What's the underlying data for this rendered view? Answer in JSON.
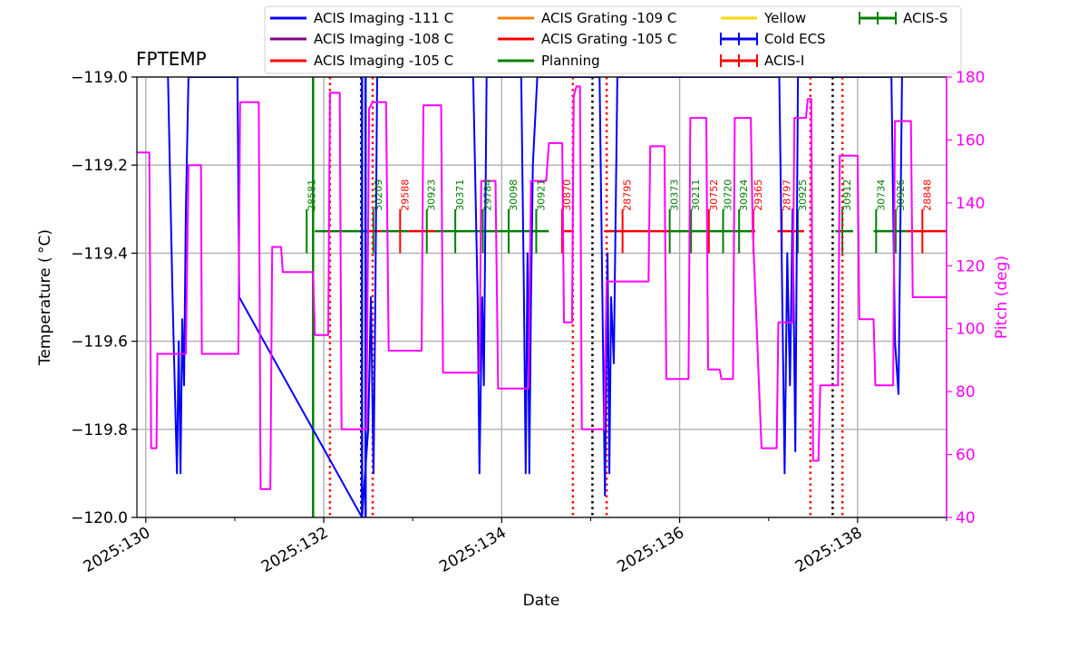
{
  "chart_data": {
    "type": "line",
    "title": "FPTEMP",
    "xlabel": "Date",
    "ylabel": "Temperature ($^\\circ$C)",
    "ylabel_display": "Temperature ( °C)",
    "y2label": "Pitch (deg)",
    "xlim": [
      129.9,
      139.0
    ],
    "ylim": [
      -120.0,
      -119.0
    ],
    "y2lim": [
      40,
      180
    ],
    "x_ticks": [
      130,
      132,
      134,
      136,
      138
    ],
    "x_tick_labels": [
      "2025:130",
      "2025:132",
      "2025:134",
      "2025:136",
      "2025:138"
    ],
    "y_ticks": [
      -120.0,
      -119.8,
      -119.6,
      -119.4,
      -119.2,
      -119.0
    ],
    "y_tick_labels": [
      "−120.0",
      "−119.8",
      "−119.6",
      "−119.4",
      "−119.2",
      "−119.0"
    ],
    "y2_ticks": [
      40,
      60,
      80,
      100,
      120,
      140,
      160,
      180
    ],
    "y2_tick_labels": [
      "40",
      "60",
      "80",
      "100",
      "120",
      "140",
      "160",
      "180"
    ],
    "grid": true,
    "legend_placement": "top, above plot",
    "colors": {
      "temperature": "#0000ff",
      "pitch": "#ff00ff",
      "planning": "#008000",
      "red_limit": "#ff0000",
      "grid": "#b0b0b0"
    },
    "legend": [
      {
        "label": "ACIS Imaging -111 C",
        "color": "#0000ff",
        "style": "line"
      },
      {
        "label": "ACIS Imaging -108 C",
        "color": "#800080",
        "style": "line"
      },
      {
        "label": "ACIS Imaging -105 C",
        "color": "#ff0000",
        "style": "line"
      },
      {
        "label": "ACIS Grating -109 C",
        "color": "#ff8000",
        "style": "line"
      },
      {
        "label": "ACIS Grating -105 C",
        "color": "#ff0000",
        "style": "line"
      },
      {
        "label": "Planning",
        "color": "#008000",
        "style": "line"
      },
      {
        "label": "Yellow",
        "color": "#ffd700",
        "style": "line"
      },
      {
        "label": "Cold ECS",
        "color": "#0000ff",
        "style": "errorbar"
      },
      {
        "label": "ACIS-I",
        "color": "#ff0000",
        "style": "errorbar"
      },
      {
        "label": "ACIS-S",
        "color": "#008000",
        "style": "errorbar"
      }
    ],
    "obsids": [
      {
        "id": "28581",
        "x": 131.9,
        "color": "#008000"
      },
      {
        "id": "30209",
        "x": 132.65,
        "color": "#008000"
      },
      {
        "id": "29588",
        "x": 132.95,
        "color": "#ff0000"
      },
      {
        "id": "30923",
        "x": 133.25,
        "color": "#008000"
      },
      {
        "id": "30371",
        "x": 133.57,
        "color": "#008000"
      },
      {
        "id": "29784",
        "x": 133.88,
        "color": "#008000"
      },
      {
        "id": "30098",
        "x": 134.17,
        "color": "#008000"
      },
      {
        "id": "30921",
        "x": 134.48,
        "color": "#008000"
      },
      {
        "id": "30870",
        "x": 134.77,
        "color": "#ff0000"
      },
      {
        "id": "28795",
        "x": 135.45,
        "color": "#ff0000"
      },
      {
        "id": "30373",
        "x": 135.98,
        "color": "#008000"
      },
      {
        "id": "30211",
        "x": 136.22,
        "color": "#008000"
      },
      {
        "id": "30752",
        "x": 136.42,
        "color": "#ff0000"
      },
      {
        "id": "30720",
        "x": 136.58,
        "color": "#008000"
      },
      {
        "id": "30924",
        "x": 136.76,
        "color": "#008000"
      },
      {
        "id": "29365",
        "x": 136.92,
        "color": "#ff0000"
      },
      {
        "id": "28797",
        "x": 137.24,
        "color": "#ff0000"
      },
      {
        "id": "30925",
        "x": 137.42,
        "color": "#008000"
      },
      {
        "id": "30912",
        "x": 137.92,
        "color": "#008000"
      },
      {
        "id": "30734",
        "x": 138.3,
        "color": "#008000"
      },
      {
        "id": "30926",
        "x": 138.52,
        "color": "#008000"
      },
      {
        "id": "28848",
        "x": 138.82,
        "color": "#ff0000"
      }
    ],
    "segments": [
      {
        "x0": 131.9,
        "x1": 132.5,
        "color": "#008000"
      },
      {
        "x0": 132.5,
        "x1": 132.65,
        "color": "#ff0000"
      },
      {
        "x0": 132.65,
        "x1": 132.95,
        "color": "#008000"
      },
      {
        "x0": 132.95,
        "x1": 133.25,
        "color": "#ff0000"
      },
      {
        "x0": 133.25,
        "x1": 134.53,
        "color": "#008000"
      },
      {
        "x0": 134.7,
        "x1": 134.8,
        "color": "#ff0000"
      },
      {
        "x0": 135.15,
        "x1": 135.9,
        "color": "#ff0000"
      },
      {
        "x0": 135.9,
        "x1": 136.85,
        "color": "#008000"
      },
      {
        "x0": 136.8,
        "x1": 136.85,
        "color": "#ff0000"
      },
      {
        "x0": 137.1,
        "x1": 137.4,
        "color": "#ff0000"
      },
      {
        "x0": 137.75,
        "x1": 137.95,
        "color": "#008000"
      },
      {
        "x0": 138.18,
        "x1": 138.55,
        "color": "#008000"
      },
      {
        "x0": 138.55,
        "x1": 139.0,
        "color": "#ff0000"
      }
    ],
    "vlines": [
      {
        "x": 129.89,
        "color": "#ff0000",
        "style": "dotted"
      },
      {
        "x": 132.07,
        "color": "#ff0000",
        "style": "dotted"
      },
      {
        "x": 132.42,
        "color": "#000000",
        "style": "dotted"
      },
      {
        "x": 132.55,
        "color": "#ff0000",
        "style": "dotted"
      },
      {
        "x": 134.8,
        "color": "#ff0000",
        "style": "dotted"
      },
      {
        "x": 135.02,
        "color": "#000000",
        "style": "dotted"
      },
      {
        "x": 135.18,
        "color": "#ff0000",
        "style": "dotted"
      },
      {
        "x": 137.47,
        "color": "#ff0000",
        "style": "dotted"
      },
      {
        "x": 137.72,
        "color": "#000000",
        "style": "dotted"
      },
      {
        "x": 137.83,
        "color": "#ff0000",
        "style": "dotted"
      },
      {
        "x": 131.88,
        "color": "#008000",
        "style": "solid"
      },
      {
        "x": 132.43,
        "color": "#0000ff",
        "style": "solid"
      },
      {
        "x": 132.47,
        "color": "#0000ff",
        "style": "solid"
      }
    ],
    "series": [
      {
        "name": "FPTEMP",
        "axis": "left",
        "color": "#0000ff",
        "points": [
          [
            130.25,
            -119.0
          ],
          [
            130.3,
            -119.5
          ],
          [
            130.35,
            -119.9
          ],
          [
            130.37,
            -119.6
          ],
          [
            130.39,
            -119.9
          ],
          [
            130.41,
            -119.55
          ],
          [
            130.43,
            -119.7
          ],
          [
            130.45,
            -119.3
          ],
          [
            130.48,
            -119.0
          ],
          [
            131.03,
            -119.0
          ],
          [
            131.05,
            -119.5
          ],
          [
            132.43,
            -120.0
          ],
          [
            132.5,
            -119.8
          ],
          [
            132.53,
            -119.5
          ],
          [
            132.56,
            -119.9
          ],
          [
            132.58,
            -119.5
          ],
          [
            132.6,
            -119.0
          ],
          [
            133.68,
            -119.0
          ],
          [
            133.73,
            -119.5
          ],
          [
            133.75,
            -119.9
          ],
          [
            133.78,
            -119.5
          ],
          [
            133.8,
            -119.7
          ],
          [
            133.83,
            -119.0
          ],
          [
            134.22,
            -119.0
          ],
          [
            134.25,
            -119.5
          ],
          [
            134.27,
            -119.9
          ],
          [
            134.29,
            -119.4
          ],
          [
            134.31,
            -119.9
          ],
          [
            134.33,
            -119.5
          ],
          [
            134.35,
            -119.2
          ],
          [
            134.4,
            -119.0
          ],
          [
            135.1,
            -119.0
          ],
          [
            135.16,
            -119.95
          ],
          [
            135.19,
            -119.4
          ],
          [
            135.21,
            -119.9
          ],
          [
            135.23,
            -119.5
          ],
          [
            135.26,
            -119.65
          ],
          [
            135.3,
            -119.0
          ],
          [
            137.12,
            -119.0
          ],
          [
            137.18,
            -119.9
          ],
          [
            137.21,
            -119.4
          ],
          [
            137.24,
            -119.7
          ],
          [
            137.27,
            -119.3
          ],
          [
            137.3,
            -119.85
          ],
          [
            137.33,
            -119.0
          ],
          [
            138.38,
            -119.0
          ],
          [
            138.42,
            -119.6
          ],
          [
            138.46,
            -119.72
          ],
          [
            138.5,
            -119.0
          ]
        ]
      },
      {
        "name": "Pitch",
        "axis": "right",
        "color": "#ff00ff",
        "points": [
          [
            129.9,
            156
          ],
          [
            130.04,
            156
          ],
          [
            130.06,
            62
          ],
          [
            130.12,
            62
          ],
          [
            130.13,
            92
          ],
          [
            130.45,
            92
          ],
          [
            130.48,
            152
          ],
          [
            130.62,
            152
          ],
          [
            130.63,
            92
          ],
          [
            131.04,
            92
          ],
          [
            131.06,
            172
          ],
          [
            131.27,
            172
          ],
          [
            131.29,
            49
          ],
          [
            131.4,
            49
          ],
          [
            131.42,
            126
          ],
          [
            131.52,
            126
          ],
          [
            131.54,
            118
          ],
          [
            131.88,
            118
          ],
          [
            131.9,
            98
          ],
          [
            132.05,
            98
          ],
          [
            132.07,
            175
          ],
          [
            132.18,
            175
          ],
          [
            132.2,
            68
          ],
          [
            132.48,
            68
          ],
          [
            132.51,
            170
          ],
          [
            132.55,
            172
          ],
          [
            132.7,
            172
          ],
          [
            132.73,
            93
          ],
          [
            133.1,
            93
          ],
          [
            133.12,
            171
          ],
          [
            133.32,
            171
          ],
          [
            133.34,
            86
          ],
          [
            133.75,
            86
          ],
          [
            133.77,
            147
          ],
          [
            133.93,
            147
          ],
          [
            133.96,
            81
          ],
          [
            134.3,
            81
          ],
          [
            134.33,
            147
          ],
          [
            134.5,
            147
          ],
          [
            134.53,
            159
          ],
          [
            134.68,
            159
          ],
          [
            134.7,
            102
          ],
          [
            134.79,
            102
          ],
          [
            134.81,
            174
          ],
          [
            134.84,
            177
          ],
          [
            134.88,
            177
          ],
          [
            134.9,
            68
          ],
          [
            135.15,
            68
          ],
          [
            135.18,
            115
          ],
          [
            135.65,
            115
          ],
          [
            135.67,
            158
          ],
          [
            135.83,
            158
          ],
          [
            135.85,
            84
          ],
          [
            136.1,
            84
          ],
          [
            136.12,
            167
          ],
          [
            136.3,
            167
          ],
          [
            136.32,
            87
          ],
          [
            136.45,
            87
          ],
          [
            136.47,
            84
          ],
          [
            136.6,
            84
          ],
          [
            136.62,
            167
          ],
          [
            136.8,
            167
          ],
          [
            136.82,
            133
          ],
          [
            136.92,
            62
          ],
          [
            137.09,
            62
          ],
          [
            137.11,
            102
          ],
          [
            137.27,
            102
          ],
          [
            137.29,
            167
          ],
          [
            137.42,
            167
          ],
          [
            137.44,
            173
          ],
          [
            137.48,
            173
          ],
          [
            137.5,
            58
          ],
          [
            137.56,
            58
          ],
          [
            137.58,
            82
          ],
          [
            137.78,
            82
          ],
          [
            137.8,
            155
          ],
          [
            138.0,
            155
          ],
          [
            138.02,
            103
          ],
          [
            138.18,
            103
          ],
          [
            138.2,
            82
          ],
          [
            138.4,
            82
          ],
          [
            138.42,
            166
          ],
          [
            138.6,
            166
          ],
          [
            138.62,
            110
          ],
          [
            139.0,
            110
          ]
        ]
      }
    ]
  }
}
